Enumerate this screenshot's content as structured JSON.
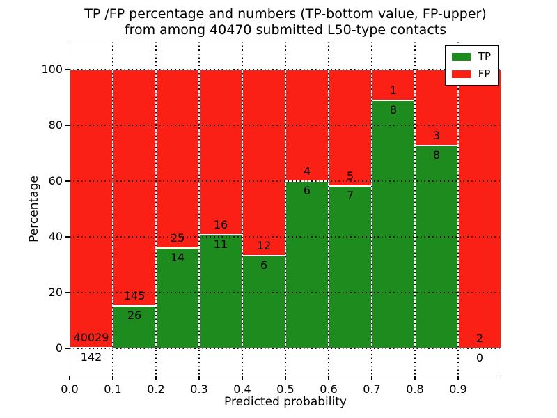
{
  "chart_data": {
    "type": "bar",
    "subtype": "stacked-percentage-histogram",
    "title": "TP /FP percentage and numbers (TP-bottom value, FP-upper) from among 40470 submitted L50-type contacts",
    "title_lines": [
      "TP /FP percentage and numbers (TP-bottom value, FP-upper)",
      "from among 40470 submitted L50-type contacts"
    ],
    "xlabel": "Predicted probability",
    "ylabel": "Percentage",
    "xlim": [
      0.0,
      1.0
    ],
    "ylim": [
      -10,
      110
    ],
    "xticks": [
      "0.0",
      "0.1",
      "0.2",
      "0.3",
      "0.4",
      "0.5",
      "0.6",
      "0.7",
      "0.8",
      "0.9"
    ],
    "yticks": [
      0,
      20,
      40,
      60,
      80,
      100
    ],
    "grid": {
      "on": true,
      "style": "dotted",
      "color": "#000000"
    },
    "total_submitted": 40470,
    "legend": {
      "position": "upper-right",
      "entries": [
        {
          "label": "TP",
          "color": "#1e8b1e"
        },
        {
          "label": "FP",
          "color": "#fb2015"
        }
      ]
    },
    "bar_colors": {
      "tp": "#1e8b1e",
      "fp": "#fb2015"
    },
    "bar_edge_color": "#ffffff",
    "bins": [
      {
        "x_range": [
          0.0,
          0.1
        ],
        "tp": 142,
        "fp": 40029
      },
      {
        "x_range": [
          0.1,
          0.2
        ],
        "tp": 26,
        "fp": 145
      },
      {
        "x_range": [
          0.2,
          0.3
        ],
        "tp": 14,
        "fp": 25
      },
      {
        "x_range": [
          0.3,
          0.4
        ],
        "tp": 11,
        "fp": 16
      },
      {
        "x_range": [
          0.4,
          0.5
        ],
        "tp": 6,
        "fp": 12
      },
      {
        "x_range": [
          0.5,
          0.6
        ],
        "tp": 6,
        "fp": 4
      },
      {
        "x_range": [
          0.6,
          0.7
        ],
        "tp": 7,
        "fp": 5
      },
      {
        "x_range": [
          0.7,
          0.8
        ],
        "tp": 8,
        "fp": 1
      },
      {
        "x_range": [
          0.8,
          0.9
        ],
        "tp": 8,
        "fp": 3
      },
      {
        "x_range": [
          0.9,
          1.0
        ],
        "tp": 0,
        "fp": 2
      }
    ]
  }
}
